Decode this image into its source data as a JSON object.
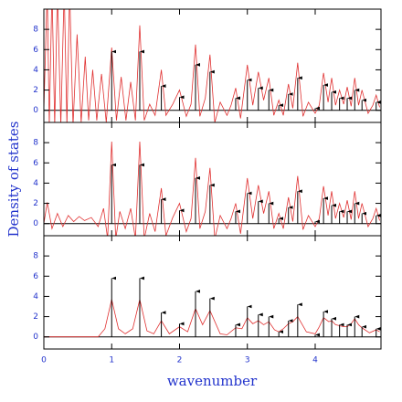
{
  "chart_data": {
    "type": "stick-spectrum",
    "x_label": "wavenumber",
    "y_label": "Density of states",
    "xlim": [
      0,
      4.97
    ],
    "xticks": [
      0,
      1,
      2,
      3,
      4
    ],
    "ylim": [
      -1.2,
      10
    ],
    "yticks": [
      0,
      2,
      4,
      6,
      8
    ],
    "sticks": {
      "color": "#000000",
      "x": [
        1.0,
        1.414,
        1.732,
        2.0,
        2.236,
        2.449,
        2.828,
        3.0,
        3.162,
        3.317,
        3.464,
        3.606,
        3.742,
        4.0,
        4.123,
        4.243,
        4.359,
        4.472,
        4.583,
        4.69,
        4.899
      ],
      "values": [
        5.8,
        5.8,
        2.4,
        1.3,
        4.5,
        3.8,
        1.2,
        3.0,
        2.2,
        2.0,
        0.5,
        1.6,
        3.2,
        0.2,
        2.5,
        1.8,
        1.2,
        1.2,
        2.0,
        1.0,
        0.8
      ]
    },
    "panels": [
      {
        "color": "#e03030",
        "x": [
          0,
          0.05,
          0.08,
          0.12,
          0.16,
          0.2,
          0.25,
          0.3,
          0.34,
          0.38,
          0.43,
          0.49,
          0.55,
          0.61,
          0.66,
          0.72,
          0.78,
          0.85,
          0.92,
          1.0,
          1.07,
          1.14,
          1.21,
          1.28,
          1.35,
          1.414,
          1.48,
          1.56,
          1.64,
          1.732,
          1.8,
          1.9,
          2.0,
          2.1,
          2.17,
          2.236,
          2.3,
          2.38,
          2.449,
          2.52,
          2.6,
          2.7,
          2.76,
          2.828,
          2.9,
          3.0,
          3.08,
          3.162,
          3.24,
          3.317,
          3.39,
          3.464,
          3.53,
          3.606,
          3.67,
          3.742,
          3.82,
          3.9,
          4.0,
          4.06,
          4.123,
          4.19,
          4.243,
          4.3,
          4.359,
          4.42,
          4.472,
          4.53,
          4.583,
          4.64,
          4.69,
          4.78,
          4.85,
          4.899,
          4.95
        ],
        "values": [
          0,
          12,
          -1.5,
          12,
          -1.5,
          12,
          -1.5,
          12,
          -1.5,
          12,
          -1.5,
          7.5,
          -1.2,
          5.3,
          -1,
          4.0,
          -1,
          3.6,
          -1.2,
          6.2,
          -1.0,
          3.3,
          -1,
          2.8,
          -1,
          8.4,
          -1,
          0.6,
          -0.5,
          4.0,
          -0.5,
          0.6,
          2.0,
          -0.6,
          0.6,
          6.5,
          -0.6,
          1.2,
          5.5,
          -1.2,
          0.8,
          -0.5,
          0.5,
          2.2,
          -0.8,
          4.5,
          0.5,
          3.8,
          1.0,
          3.2,
          -0.5,
          1.0,
          -0.5,
          2.6,
          0.2,
          4.7,
          -0.6,
          0.8,
          -0.3,
          0.5,
          3.7,
          0.8,
          3.2,
          0.5,
          2.0,
          0.6,
          2.3,
          0.4,
          3.2,
          0.5,
          2.0,
          -0.3,
          0.5,
          1.5,
          0.3
        ]
      },
      {
        "color": "#e03030",
        "x": [
          0,
          0.05,
          0.12,
          0.2,
          0.28,
          0.36,
          0.44,
          0.52,
          0.6,
          0.7,
          0.8,
          0.88,
          0.94,
          1.0,
          1.06,
          1.12,
          1.2,
          1.28,
          1.35,
          1.414,
          1.48,
          1.56,
          1.64,
          1.732,
          1.8,
          1.9,
          2.0,
          2.1,
          2.17,
          2.236,
          2.3,
          2.38,
          2.449,
          2.52,
          2.6,
          2.7,
          2.76,
          2.828,
          2.9,
          3.0,
          3.08,
          3.162,
          3.24,
          3.317,
          3.39,
          3.464,
          3.53,
          3.606,
          3.67,
          3.742,
          3.82,
          3.9,
          4.0,
          4.06,
          4.123,
          4.19,
          4.243,
          4.3,
          4.359,
          4.42,
          4.472,
          4.53,
          4.583,
          4.64,
          4.69,
          4.78,
          4.85,
          4.899,
          4.95
        ],
        "values": [
          0,
          2.1,
          -0.5,
          1.0,
          -0.3,
          0.8,
          0.2,
          0.7,
          0.3,
          0.6,
          -0.3,
          1.5,
          -1.5,
          8.1,
          -1.5,
          1.2,
          -0.5,
          1.5,
          -1.5,
          8.1,
          -1.5,
          1.0,
          -0.8,
          3.5,
          -1.2,
          0.6,
          2.0,
          -0.8,
          0.5,
          6.5,
          -0.5,
          1.2,
          5.5,
          -1.5,
          0.8,
          -0.5,
          0.5,
          2.0,
          -1,
          4.5,
          0.5,
          3.8,
          1.0,
          3.2,
          -0.5,
          1.0,
          -0.5,
          2.6,
          0.2,
          4.7,
          -0.6,
          0.8,
          -0.3,
          0.5,
          3.7,
          0.8,
          3.2,
          0.5,
          2.0,
          0.6,
          2.3,
          0.4,
          3.2,
          0.5,
          2.0,
          -0.3,
          0.5,
          1.5,
          0.3
        ]
      },
      {
        "color": "#e03030",
        "x": [
          0,
          0.8,
          0.9,
          1.0,
          1.1,
          1.2,
          1.31,
          1.414,
          1.52,
          1.62,
          1.732,
          1.85,
          2.0,
          2.12,
          2.236,
          2.34,
          2.449,
          2.6,
          2.7,
          2.828,
          2.92,
          3.0,
          3.08,
          3.162,
          3.24,
          3.317,
          3.4,
          3.464,
          3.53,
          3.606,
          3.67,
          3.742,
          3.87,
          4.0,
          4.06,
          4.123,
          4.2,
          4.243,
          4.3,
          4.359,
          4.42,
          4.472,
          4.53,
          4.583,
          4.64,
          4.69,
          4.8,
          4.899,
          4.95
        ],
        "values": [
          0,
          0,
          0.8,
          3.7,
          0.8,
          0.3,
          0.8,
          3.7,
          0.6,
          0.3,
          1.6,
          0.3,
          1.0,
          0.5,
          2.8,
          1.2,
          2.6,
          0.3,
          0.2,
          0.9,
          0.8,
          1.9,
          1.3,
          1.6,
          1.2,
          1.5,
          0.7,
          0.5,
          0.8,
          1.3,
          1.5,
          2.0,
          0.5,
          0.3,
          1.0,
          1.9,
          1.5,
          1.6,
          1.2,
          1.1,
          1.0,
          1.0,
          1.3,
          1.8,
          1.2,
          0.9,
          0.4,
          0.7,
          0.5
        ]
      }
    ]
  }
}
